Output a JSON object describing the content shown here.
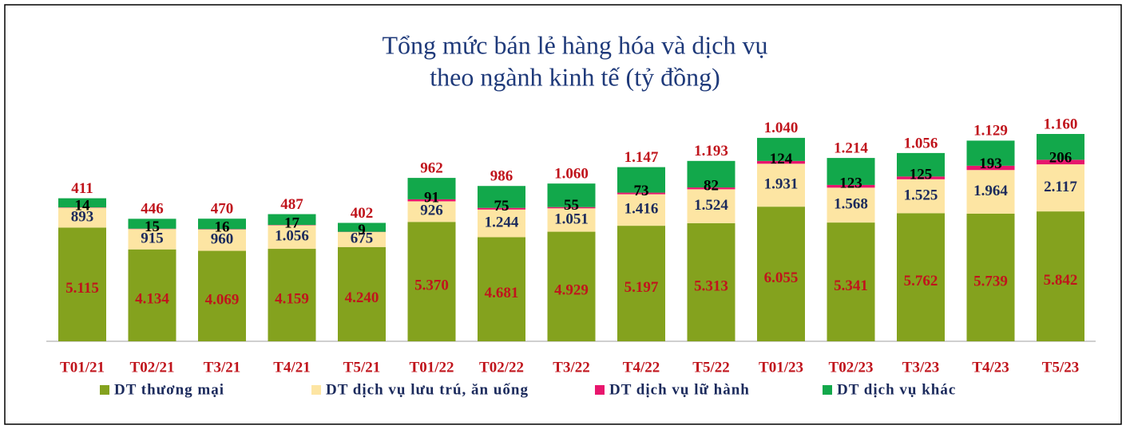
{
  "chart_data": {
    "type": "stacked_bar",
    "title": "Tổng mức bán lẻ hàng hóa và dịch vụ",
    "subtitle": "theo ngành kinh tế (tỷ đồng)",
    "categories": [
      "T01/21",
      "T02/21",
      "T3/21",
      "T4/21",
      "T5/21",
      "T01/22",
      "T02/22",
      "T3/22",
      "T4/22",
      "T5/22",
      "T01/23",
      "T02/23",
      "T3/23",
      "T4/23",
      "T5/23"
    ],
    "series": [
      {
        "name": "DT thương mại",
        "color": "#84a21e",
        "label_color": "#c0141c",
        "values": [
          5115,
          4134,
          4069,
          4159,
          4240,
          5370,
          4681,
          4929,
          5197,
          5313,
          6055,
          5341,
          5762,
          5739,
          5842
        ],
        "value_labels": [
          "5.115",
          "4.134",
          "4.069",
          "4.159",
          "4.240",
          "5.370",
          "4.681",
          "4.929",
          "5.197",
          "5.313",
          "6.055",
          "5.341",
          "5.762",
          "5.739",
          "5.842"
        ]
      },
      {
        "name": "DT dịch vụ lưu trú, ăn uống",
        "color": "#fde5a3",
        "label_color": "#1b2a5c",
        "values": [
          893,
          915,
          960,
          1056,
          675,
          926,
          1244,
          1051,
          1416,
          1524,
          1931,
          1568,
          1525,
          1964,
          2117
        ],
        "value_labels": [
          "893",
          "915",
          "960",
          "1.056",
          "675",
          "926",
          "1.244",
          "1.051",
          "1.416",
          "1.524",
          "1.931",
          "1.568",
          "1.525",
          "1.964",
          "2.117"
        ]
      },
      {
        "name": "DT dịch vụ lữ hành",
        "color": "#e8166d",
        "label_color": "#000000",
        "values": [
          14,
          15,
          16,
          17,
          9,
          91,
          75,
          55,
          73,
          82,
          124,
          123,
          125,
          193,
          206
        ]
      },
      {
        "name": "DT dịch vụ khác",
        "color": "#12a84b",
        "label_color": "#c0141c",
        "values": [
          411,
          446,
          470,
          487,
          402,
          962,
          986,
          1060,
          1147,
          1193,
          1040,
          1214,
          1056,
          1129,
          1160
        ],
        "value_labels": [
          "411",
          "446",
          "470",
          "487",
          "402",
          "962",
          "986",
          "1.060",
          "1.147",
          "1.193",
          "1.040",
          "1.214",
          "1.056",
          "1.129",
          "1.160"
        ]
      }
    ]
  }
}
